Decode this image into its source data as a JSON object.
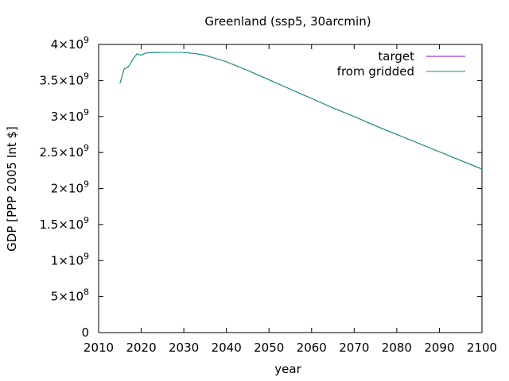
{
  "chart_data": {
    "type": "line",
    "title": "Greenland (ssp5, 30arcmin)",
    "xlabel": "year",
    "ylabel": "GDP [PPP 2005 Int $]",
    "xlim": [
      2010,
      2100
    ],
    "ylim": [
      0,
      4000000000
    ],
    "x_ticks": [
      2010,
      2020,
      2030,
      2040,
      2050,
      2060,
      2070,
      2080,
      2090,
      2100
    ],
    "y_ticks": [
      {
        "value": 0,
        "mantissa": "0",
        "exp": ""
      },
      {
        "value": 500000000,
        "mantissa": "5×10",
        "exp": "8"
      },
      {
        "value": 1000000000,
        "mantissa": "1×10",
        "exp": "9"
      },
      {
        "value": 1500000000,
        "mantissa": "1.5×10",
        "exp": "9"
      },
      {
        "value": 2000000000,
        "mantissa": "2×10",
        "exp": "9"
      },
      {
        "value": 2500000000,
        "mantissa": "2.5×10",
        "exp": "9"
      },
      {
        "value": 3000000000,
        "mantissa": "3×10",
        "exp": "9"
      },
      {
        "value": 3500000000,
        "mantissa": "3.5×10",
        "exp": "9"
      },
      {
        "value": 4000000000,
        "mantissa": "4×10",
        "exp": "9"
      }
    ],
    "grid": false,
    "legend_position": "top-right",
    "series": [
      {
        "name": "target",
        "color": "#9400d3",
        "x": [
          2015,
          2016,
          2017,
          2018,
          2019,
          2020,
          2021,
          2022,
          2025,
          2030,
          2033,
          2035,
          2040,
          2045,
          2050,
          2055,
          2060,
          2065,
          2070,
          2075,
          2080,
          2085,
          2090,
          2095,
          2100
        ],
        "y": [
          3460000000,
          3660000000,
          3690000000,
          3790000000,
          3870000000,
          3850000000,
          3880000000,
          3885000000,
          3890000000,
          3890000000,
          3870000000,
          3850000000,
          3760000000,
          3640000000,
          3510000000,
          3380000000,
          3250000000,
          3120000000,
          3000000000,
          2870000000,
          2750000000,
          2630000000,
          2510000000,
          2390000000,
          2270000000
        ]
      },
      {
        "name": "from gridded",
        "color": "#009e73",
        "x": [
          2015,
          2016,
          2017,
          2018,
          2019,
          2020,
          2021,
          2022,
          2025,
          2030,
          2033,
          2035,
          2040,
          2045,
          2050,
          2055,
          2060,
          2065,
          2070,
          2075,
          2080,
          2085,
          2090,
          2095,
          2100
        ],
        "y": [
          3460000000,
          3660000000,
          3690000000,
          3790000000,
          3870000000,
          3850000000,
          3880000000,
          3885000000,
          3890000000,
          3890000000,
          3870000000,
          3850000000,
          3760000000,
          3640000000,
          3510000000,
          3380000000,
          3250000000,
          3120000000,
          3000000000,
          2870000000,
          2750000000,
          2630000000,
          2510000000,
          2390000000,
          2270000000
        ]
      }
    ]
  }
}
